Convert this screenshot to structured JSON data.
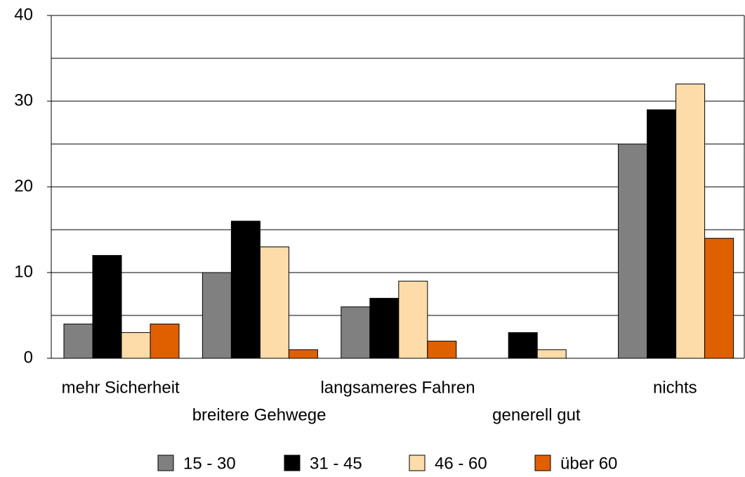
{
  "chart_data": {
    "type": "bar",
    "categories": [
      "mehr Sicherheit",
      "breitere Gehwege",
      "langsameres Fahren",
      "generell gut",
      "nichts"
    ],
    "series": [
      {
        "name": "15 - 30",
        "color": "#808080",
        "values": [
          4,
          10,
          6,
          0,
          25
        ]
      },
      {
        "name": "31 - 45",
        "color": "#000000",
        "values": [
          12,
          16,
          7,
          3,
          29
        ]
      },
      {
        "name": "46 - 60",
        "color": "#fedcaa",
        "values": [
          3,
          13,
          9,
          1,
          32
        ]
      },
      {
        "name": "über 60",
        "color": "#e06000",
        "values": [
          4,
          1,
          2,
          0,
          14
        ]
      }
    ],
    "ylim": [
      0,
      40
    ],
    "yticks": [
      0,
      10,
      20,
      30,
      40
    ],
    "minor_yticks": [
      5,
      15,
      25,
      35
    ],
    "grid": true,
    "legend": "bottom"
  }
}
